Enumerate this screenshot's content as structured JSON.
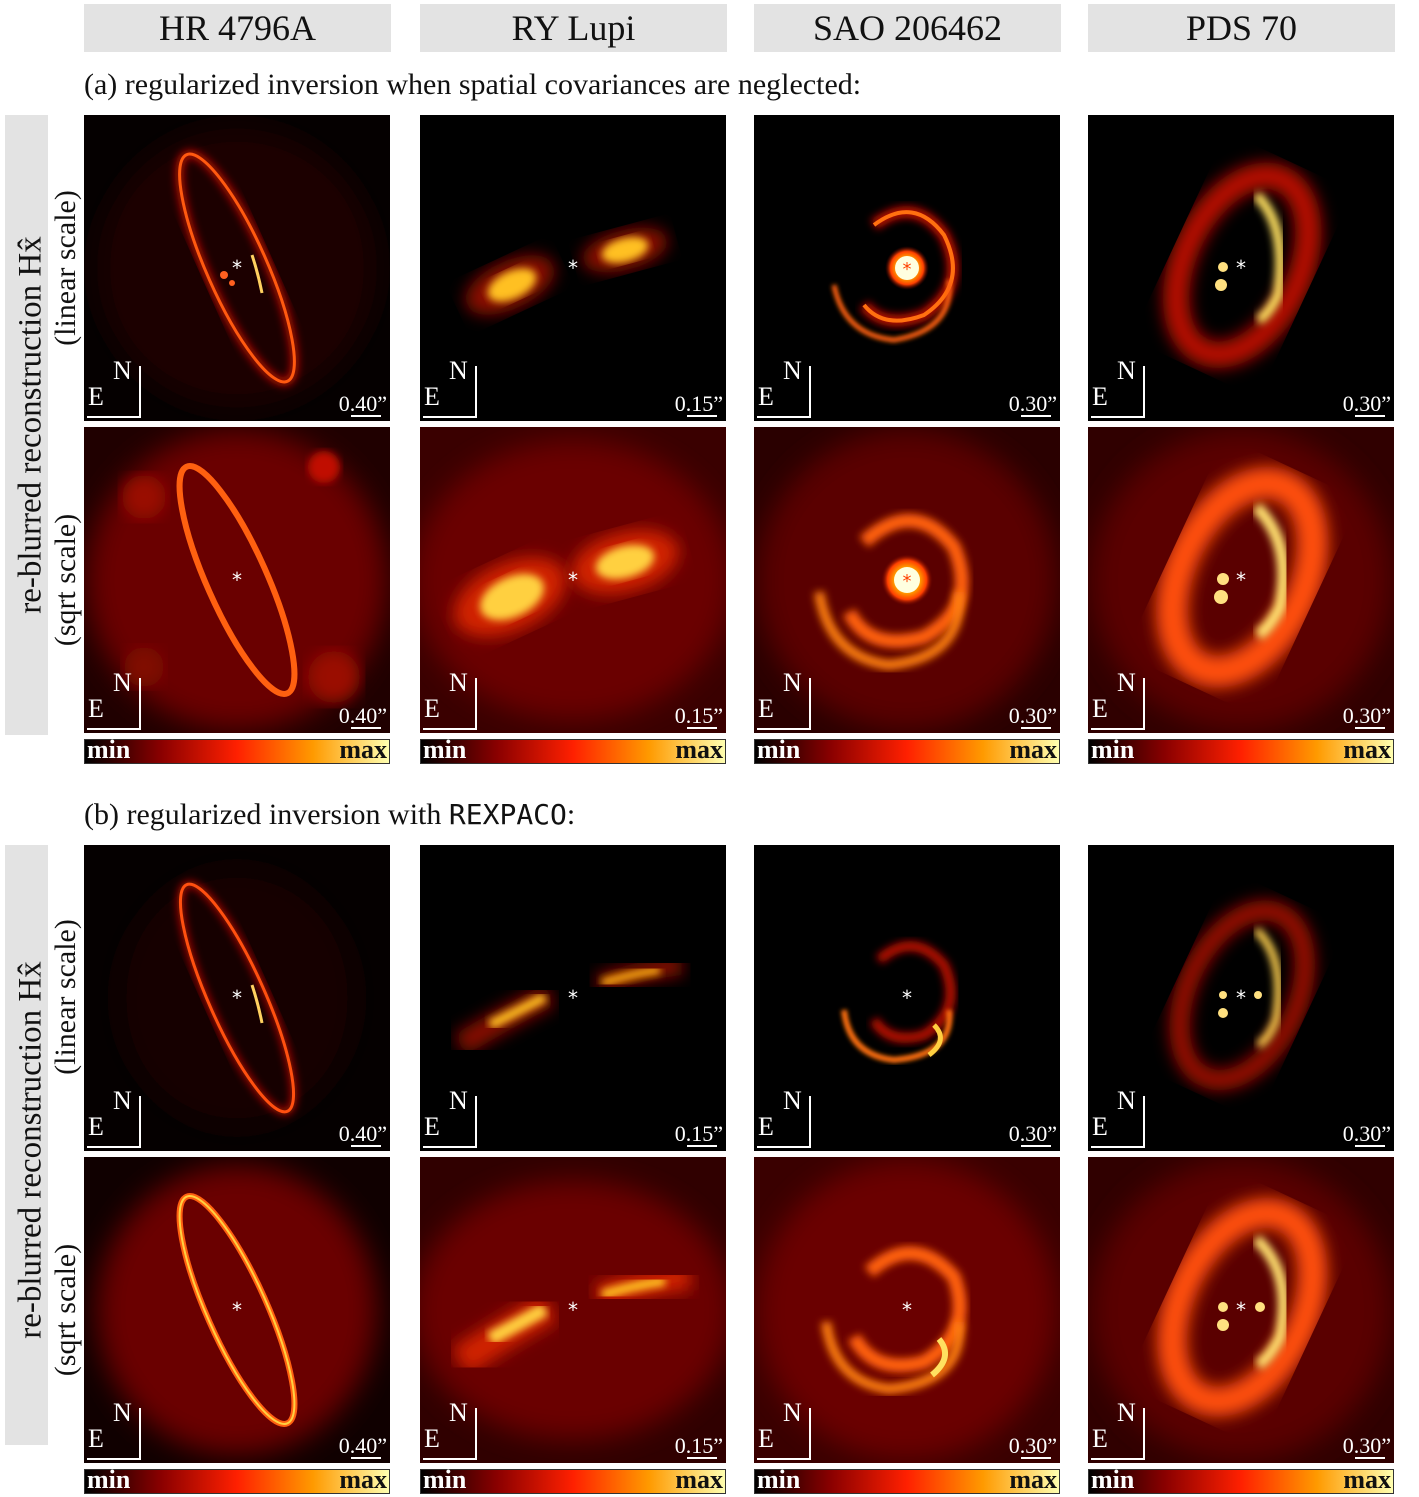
{
  "columns": [
    "HR 4796A",
    "RY Lupi",
    "SAO 206462",
    "PDS 70"
  ],
  "sections": {
    "a": {
      "caption": "(a) regularized inversion when spatial covariances are neglected:"
    },
    "b": {
      "caption_prefix": "(b) regularized inversion with ",
      "caption_code": "REXPACO",
      "caption_suffix": ":"
    }
  },
  "row_label_main": "re-blurred reconstruction Hx̂",
  "row_label_linear": "(linear scale)",
  "row_label_sqrt": "(sqrt scale)",
  "compass": {
    "north": "N",
    "east": "E"
  },
  "scales": [
    "0.40”",
    "0.15”",
    "0.30”",
    "0.30”"
  ],
  "colorbar": {
    "min": "min",
    "max": "max"
  },
  "colormap": [
    "#000000",
    "#5a0000",
    "#b81000",
    "#ff5a00",
    "#ffb000",
    "#ffff80"
  ]
}
